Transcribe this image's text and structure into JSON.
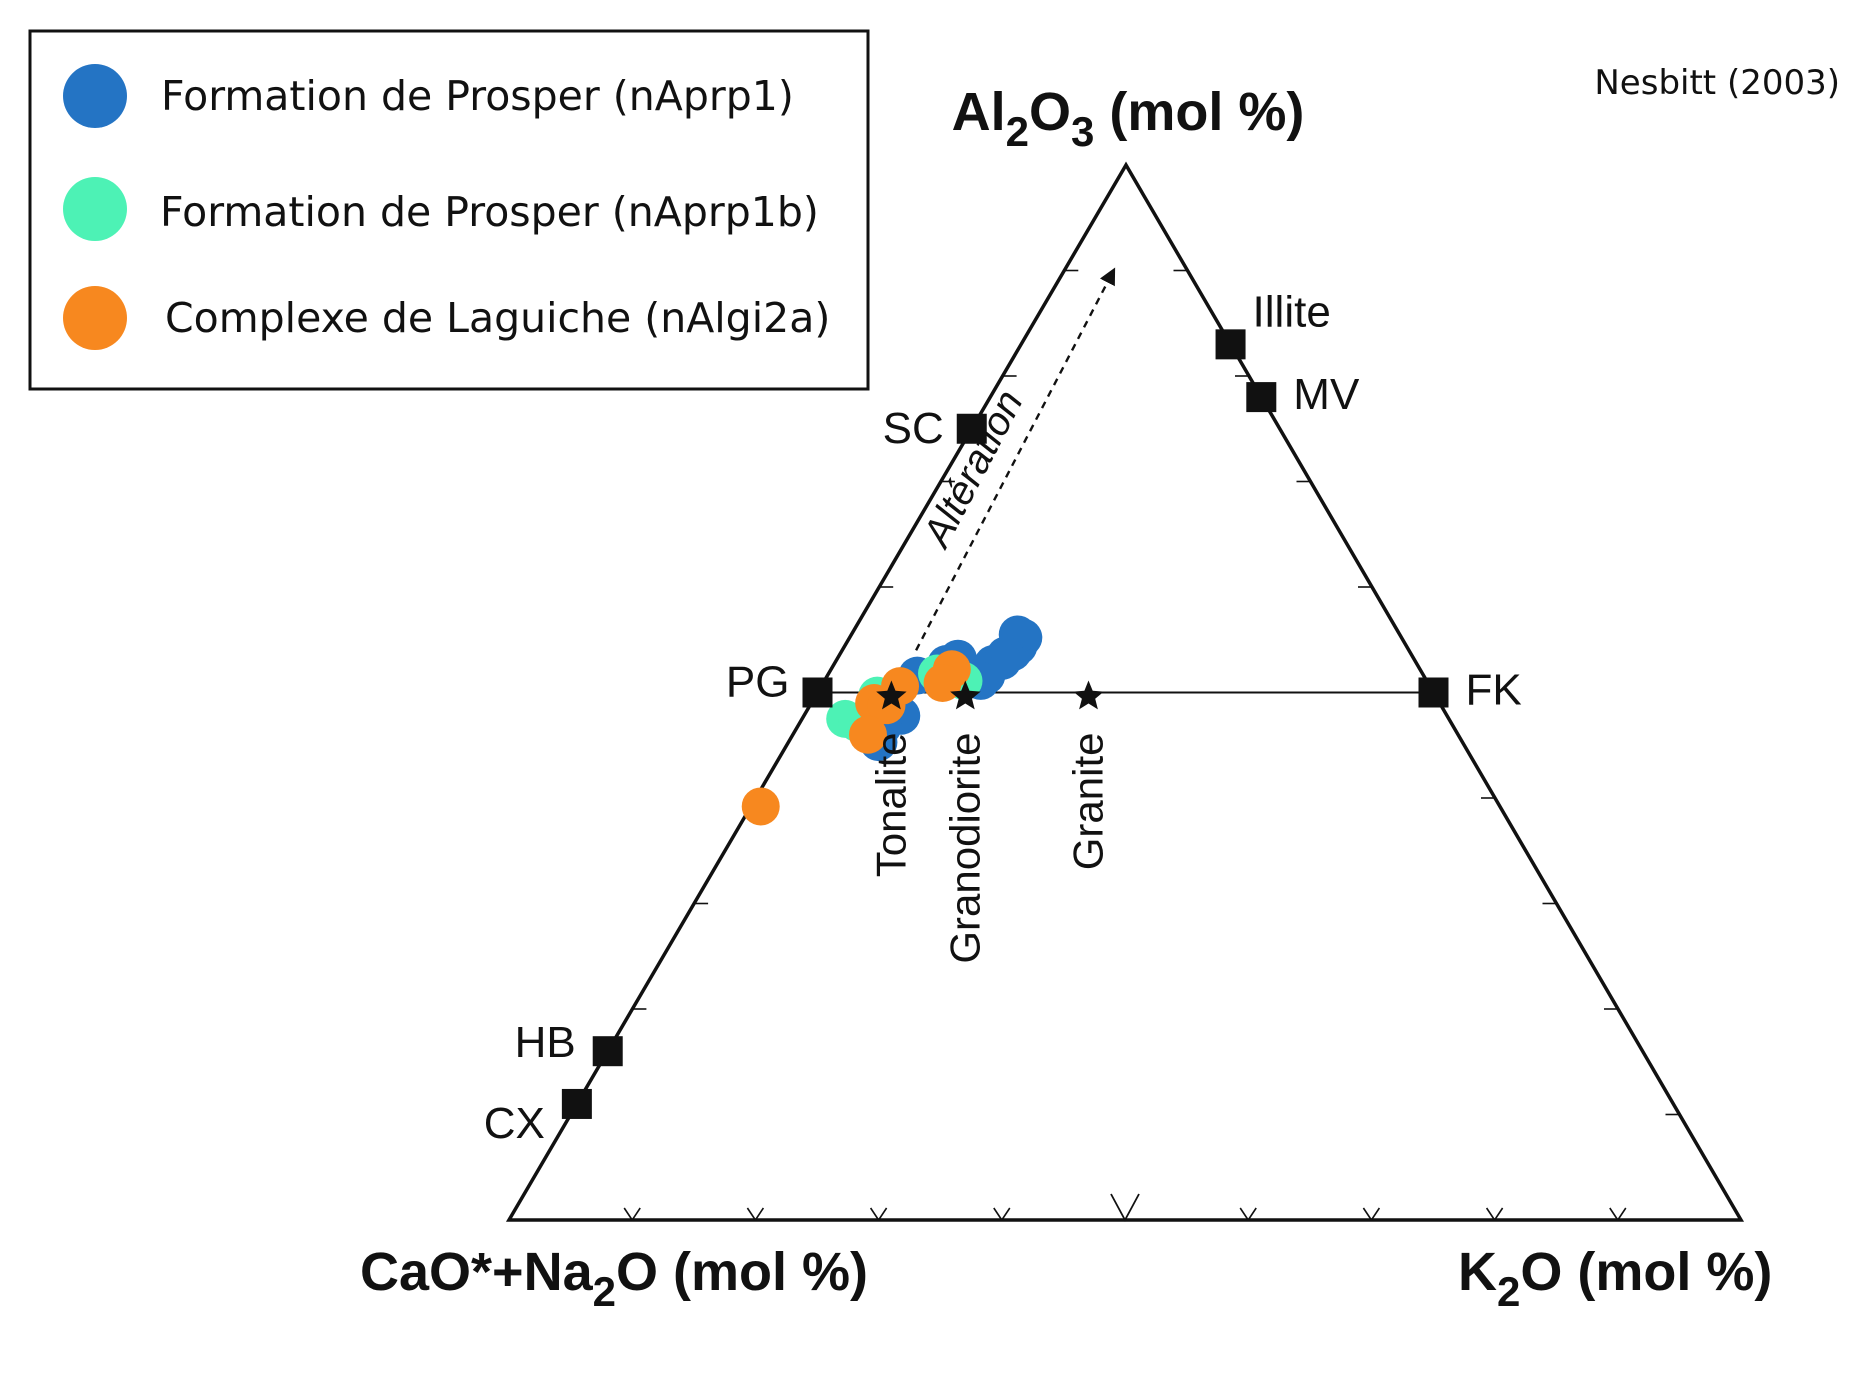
{
  "chart_data": {
    "type": "scatter",
    "diagram": "ternary",
    "citation": "Nesbitt (2003)",
    "axes": {
      "top": {
        "main": "Al",
        "sub1": "2",
        "mid": "O",
        "sub2": "3",
        "tail": " (mol %)"
      },
      "left": {
        "main": "CaO*+Na",
        "sub1": "2",
        "tail": "O (mol %)"
      },
      "right": {
        "main": "K",
        "sub1": "2",
        "tail": "O (mol %)"
      }
    },
    "legend": {
      "position": "top-left",
      "entries": [
        {
          "label": "Formation de Prosper (nAprp1)",
          "color": "#2474c4"
        },
        {
          "label": "Formation de Prosper (nAprp1b)",
          "color": "#4df2b5"
        },
        {
          "label": "Complexe de Laguiche (nAlgi2a)",
          "color": "#f7881f"
        }
      ]
    },
    "units": "mol %",
    "components": [
      "Al2O3",
      "CaO*+Na2O",
      "K2O"
    ],
    "endmembers": [
      {
        "label": "SC",
        "Al2O3": 75,
        "CaONa2O": 25,
        "K2O": 0
      },
      {
        "label": "PG",
        "Al2O3": 50,
        "CaONa2O": 50,
        "K2O": 0
      },
      {
        "label": "HB",
        "Al2O3": 16,
        "CaONa2O": 84,
        "K2O": 0
      },
      {
        "label": "CX",
        "Al2O3": 11,
        "CaONa2O": 89,
        "K2O": 0
      },
      {
        "label": "Illite",
        "Al2O3": 83,
        "CaONa2O": 0,
        "K2O": 17
      },
      {
        "label": "MV",
        "Al2O3": 78,
        "CaONa2O": 0,
        "K2O": 22
      },
      {
        "label": "FK",
        "Al2O3": 50,
        "CaONa2O": 0,
        "K2O": 50
      }
    ],
    "tie_line": [
      "PG",
      "FK"
    ],
    "rocks": [
      {
        "label": "Tonalite",
        "Al2O3": 50,
        "CaONa2O": 44,
        "K2O": 6
      },
      {
        "label": "Granodiorite",
        "Al2O3": 50,
        "CaONa2O": 38,
        "K2O": 12
      },
      {
        "label": "Granite",
        "Al2O3": 50,
        "CaONa2O": 28,
        "K2O": 22
      }
    ],
    "alteration": {
      "label": "Altération",
      "from": {
        "Al2O3": 54,
        "CaONa2O": 40,
        "K2O": 6
      },
      "to": {
        "Al2O3": 90,
        "CaONa2O": 6,
        "K2O": 4
      }
    },
    "series": [
      {
        "name": "Formation de Prosper (nAprp1)",
        "color": "#2474c4",
        "points": [
          {
            "Al2O3": 54.4,
            "CaONa2O": 31.5,
            "K2O": 14.1
          },
          {
            "Al2O3": 55.2,
            "CaONa2O": 30.7,
            "K2O": 14.1
          },
          {
            "Al2O3": 54.1,
            "CaONa2O": 32.4,
            "K2O": 14.0
          },
          {
            "Al2O3": 55.5,
            "CaONa2O": 31.0,
            "K2O": 13.5
          },
          {
            "Al2O3": 53.5,
            "CaONa2O": 33.0,
            "K2O": 13.5
          },
          {
            "Al2O3": 52.7,
            "CaONa2O": 34.4,
            "K2O": 12.9
          },
          {
            "Al2O3": 53.0,
            "CaONa2O": 33.5,
            "K2O": 13.5
          },
          {
            "Al2O3": 51.6,
            "CaONa2O": 35.5,
            "K2O": 12.9
          },
          {
            "Al2O3": 51.1,
            "CaONa2O": 36.2,
            "K2O": 12.7
          },
          {
            "Al2O3": 53.2,
            "CaONa2O": 37.0,
            "K2O": 9.8
          },
          {
            "Al2O3": 52.7,
            "CaONa2O": 38.2,
            "K2O": 9.1
          },
          {
            "Al2O3": 51.6,
            "CaONa2O": 41.1,
            "K2O": 7.3
          },
          {
            "Al2O3": 47.8,
            "CaONa2O": 44.3,
            "K2O": 7.9
          },
          {
            "Al2O3": 46.8,
            "CaONa2O": 46.3,
            "K2O": 6.9
          },
          {
            "Al2O3": 45.3,
            "CaONa2O": 47.4,
            "K2O": 7.3
          }
        ]
      },
      {
        "name": "Formation de Prosper (nAprp1b)",
        "color": "#4df2b5",
        "points": [
          {
            "Al2O3": 51.8,
            "CaONa2O": 39.4,
            "K2O": 8.8
          },
          {
            "Al2O3": 51.1,
            "CaONa2O": 37.6,
            "K2O": 11.3
          },
          {
            "Al2O3": 51.4,
            "CaONa2O": 38.5,
            "K2O": 10.1
          },
          {
            "Al2O3": 49.7,
            "CaONa2O": 45.3,
            "K2O": 5.0
          },
          {
            "Al2O3": 47.5,
            "CaONa2O": 49.0,
            "K2O": 3.5
          },
          {
            "Al2O3": 47.1,
            "CaONa2O": 48.2,
            "K2O": 4.7
          }
        ]
      },
      {
        "name": "Complexe de Laguiche (nAlgi2a)",
        "color": "#f7881f",
        "points": [
          {
            "Al2O3": 52.2,
            "CaONa2O": 38.0,
            "K2O": 9.8
          },
          {
            "Al2O3": 50.9,
            "CaONa2O": 39.4,
            "K2O": 9.7
          },
          {
            "Al2O3": 49.0,
            "CaONa2O": 45.9,
            "K2O": 5.1
          },
          {
            "Al2O3": 48.8,
            "CaONa2O": 45.0,
            "K2O": 6.2
          },
          {
            "Al2O3": 50.6,
            "CaONa2O": 43.0,
            "K2O": 6.4
          },
          {
            "Al2O3": 46.0,
            "CaONa2O": 47.9,
            "K2O": 6.1
          },
          {
            "Al2O3": 39.2,
            "CaONa2O": 60.0,
            "K2O": 0.8
          }
        ]
      }
    ]
  }
}
